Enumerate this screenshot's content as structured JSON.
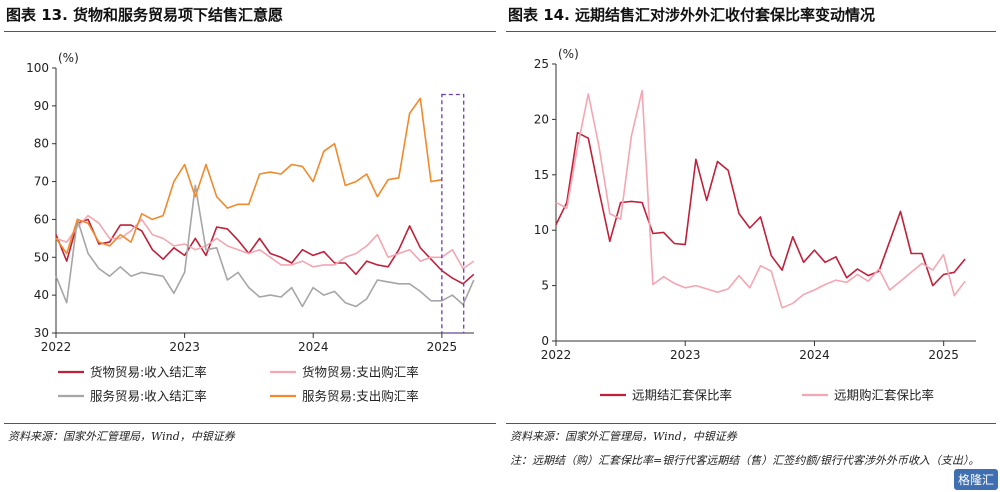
{
  "panels": [
    {
      "title": "图表 13. 货物和服务贸易项下结售汇意愿",
      "source": "资料来源：国家外汇管理局，Wind，中银证券"
    },
    {
      "title": "图表 14. 远期结售汇对涉外外汇收付套保比率变动情况",
      "source": "资料来源：国家外汇管理局，Wind，中银证券",
      "note": "注：远期结（购）汇套保比率=银行代客远期结（售）汇签约额/银行代客涉外外币收入（支出）。"
    }
  ],
  "watermark": "格隆汇",
  "chart_data": [
    {
      "type": "line",
      "title": "图表 13. 货物和服务贸易项下结售汇意愿",
      "ylabel": "(%)",
      "ylim": [
        30,
        100
      ],
      "yticks": [
        30,
        40,
        50,
        60,
        70,
        80,
        90,
        100
      ],
      "xlim": [
        2022.0,
        2025.25
      ],
      "xticks": [
        "2022",
        "2023",
        "2024",
        "2025"
      ],
      "grid": false,
      "legend": "bottom",
      "highlight_box": {
        "x": [
          2025.0,
          2025.17
        ],
        "y": [
          30,
          93
        ]
      },
      "series": [
        {
          "name": "货物贸易:收入结汇率",
          "color": "#c0203a",
          "x_start": 2022.0,
          "step": 0.0833,
          "values": [
            56,
            49,
            59,
            60,
            53.5,
            54,
            58.5,
            58.5,
            57,
            52,
            49.5,
            52.5,
            50.5,
            55,
            50.5,
            58,
            57.5,
            54.5,
            51,
            55,
            51,
            50,
            48.5,
            52,
            50.5,
            51.5,
            48.5,
            48.5,
            45.5,
            49,
            48,
            47.5,
            52,
            58.3,
            52.5,
            49.5,
            46.5,
            44.5,
            43,
            45.5
          ]
        },
        {
          "name": "货物贸易:支出购汇率",
          "color": "#f4a6b2",
          "x_start": 2022.0,
          "step": 0.0833,
          "values": [
            55,
            54,
            58,
            61,
            59,
            55,
            55,
            57,
            60,
            56,
            55,
            53,
            53.5,
            52,
            53,
            55,
            53,
            52,
            51,
            52,
            50,
            48,
            48,
            49,
            47.5,
            48,
            48,
            50,
            51,
            53,
            56,
            50,
            51,
            52,
            49,
            50,
            50,
            52,
            47,
            49
          ]
        },
        {
          "name": "服务贸易:收入结汇率",
          "color": "#a6a6a6",
          "x_start": 2022.0,
          "step": 0.0833,
          "values": [
            45,
            38,
            60,
            51,
            47,
            45,
            47.5,
            45,
            46,
            45.5,
            45,
            40.5,
            46,
            69,
            52,
            52.5,
            44,
            46,
            42,
            39.5,
            40,
            39.5,
            42,
            37,
            42,
            40,
            41,
            38,
            37,
            39,
            44,
            43.5,
            43,
            43,
            41,
            38.5,
            38.5,
            40,
            37.5,
            44
          ]
        },
        {
          "name": "服务贸易:支出购汇率",
          "color": "#f08a2c",
          "x_start": 2022.0,
          "step": 0.0833,
          "values": [
            55,
            51,
            60,
            59,
            54,
            53,
            56,
            54,
            61.5,
            60,
            61,
            70,
            74.5,
            66,
            74.5,
            66,
            63,
            64,
            64,
            72,
            72.5,
            72,
            74.5,
            74,
            70,
            78,
            80,
            69,
            70,
            72,
            66,
            70.5,
            71,
            88,
            92,
            70,
            70.5
          ]
        }
      ]
    },
    {
      "type": "line",
      "title": "图表 14. 远期结售汇对涉外外汇收付套保比率变动情况",
      "ylabel": "(%)",
      "ylim": [
        0,
        25
      ],
      "yticks": [
        0,
        5,
        10,
        15,
        20,
        25
      ],
      "xlim": [
        2022.0,
        2025.25
      ],
      "xticks": [
        "2022",
        "2023",
        "2024",
        "2025"
      ],
      "grid": false,
      "legend": "bottom",
      "series": [
        {
          "name": "远期结汇套保比率",
          "color": "#c0203a",
          "x_start": 2022.0,
          "step": 0.0833,
          "values": [
            10.5,
            12.5,
            18.8,
            18.3,
            13.5,
            9,
            12.5,
            12.6,
            12.5,
            9.7,
            9.8,
            8.8,
            8.7,
            16.4,
            12.7,
            16.2,
            15.4,
            11.5,
            10.2,
            11.2,
            7.7,
            6.4,
            9.4,
            7.1,
            8.2,
            7.1,
            7.6,
            5.7,
            6.5,
            5.9,
            6.3,
            9,
            11.7,
            7.9,
            7.9,
            5,
            6,
            6.2,
            7.4
          ]
        },
        {
          "name": "远期购汇套保比率",
          "color": "#f4a6b2",
          "x_start": 2022.0,
          "step": 0.0833,
          "values": [
            12.5,
            12,
            17.5,
            22.3,
            17.5,
            11.5,
            11,
            18.5,
            22.6,
            5.1,
            5.8,
            5.2,
            4.8,
            5,
            4.7,
            4.4,
            4.7,
            5.9,
            4.8,
            6.8,
            6.3,
            3,
            3.4,
            4.2,
            4.6,
            5.1,
            5.5,
            5.3,
            6,
            5.4,
            6.5,
            4.6,
            5.4,
            6.2,
            7,
            6.4,
            7.8,
            4.1,
            5.4
          ]
        }
      ]
    }
  ]
}
